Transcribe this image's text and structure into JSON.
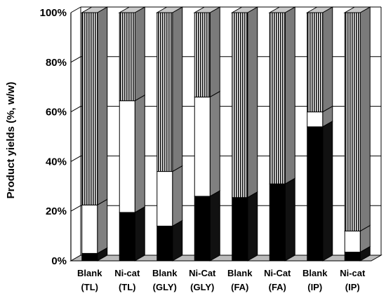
{
  "chart_data": {
    "type": "bar",
    "stacked": true,
    "three_d": true,
    "title": "",
    "xlabel": "",
    "ylabel": "Product yields (%, w/w)",
    "ylim": [
      0,
      100
    ],
    "yticks": [
      "0%",
      "20%",
      "40%",
      "60%",
      "80%",
      "100%"
    ],
    "grid": true,
    "legend": "none",
    "categories": [
      [
        "Blank",
        "(TL)"
      ],
      [
        "Ni-cat",
        "(TL)"
      ],
      [
        "Blank",
        "(GLY)"
      ],
      [
        "Ni-Cat",
        "(GLY)"
      ],
      [
        "Blank",
        "(FA)"
      ],
      [
        "Ni-Cat",
        "(FA)"
      ],
      [
        "Blank",
        "(IP)"
      ],
      [
        "Ni-cat",
        "(IP)"
      ]
    ],
    "series": [
      {
        "fill": "solid-black",
        "color": "#000000",
        "values": [
          3,
          19.5,
          14,
          26,
          25.5,
          31,
          54,
          3.5
        ]
      },
      {
        "fill": "white",
        "color": "#ffffff",
        "values": [
          19.5,
          45,
          22,
          40,
          0,
          0,
          6,
          8.5
        ]
      },
      {
        "fill": "vertical-hatch",
        "color": "#888888",
        "values": [
          77.5,
          35.5,
          64,
          34,
          74.5,
          69,
          40,
          88
        ]
      }
    ]
  }
}
